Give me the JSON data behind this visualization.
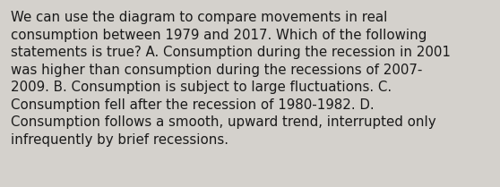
{
  "lines": [
    "We can use the diagram to compare movements in real",
    "consumption between 1979 and 2017. Which of the following",
    "statements is true? A. Consumption during the recession in 2001",
    "was higher than consumption during the recessions of 2007-",
    "2009. B. Consumption is subject to large fluctuations. C.",
    "Consumption fell after the recession of 1980-1982. D.",
    "Consumption follows a smooth, upward trend, interrupted only",
    "infrequently by brief recessions."
  ],
  "background_color": "#d4d1cc",
  "text_color": "#1a1a1a",
  "font_size": 10.8,
  "fig_width": 5.58,
  "fig_height": 2.09,
  "dpi": 100
}
